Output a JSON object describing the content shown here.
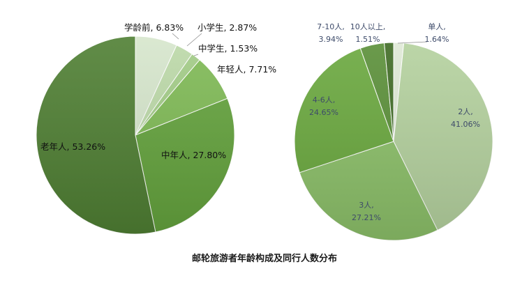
{
  "chart_data": [
    {
      "type": "pie",
      "slices": [
        {
          "label": "学龄前",
          "value": 6.83,
          "display": "学龄前, 6.83%",
          "color": "#d6e6cc"
        },
        {
          "label": "小学生",
          "value": 2.87,
          "display": "小学生, 2.87%",
          "color": "#bcd9a8"
        },
        {
          "label": "中学生",
          "value": 1.53,
          "display": "中学生, 1.53%",
          "color": "#a2cc86"
        },
        {
          "label": "年轻人",
          "value": 7.71,
          "display": "年轻人, 7.71%",
          "color": "#7fba55"
        },
        {
          "label": "中年人",
          "value": 27.8,
          "display": "中年人, 27.80%",
          "color": "#64a33d"
        },
        {
          "label": "老年人",
          "value": 53.26,
          "display": "老年人, 53.26%",
          "color": "#4f7f33"
        }
      ]
    },
    {
      "type": "pie",
      "slices": [
        {
          "label": "单人",
          "value": 1.64,
          "display_line1": "单人,",
          "display_line2": "1.64%",
          "color": "#dfe9d6"
        },
        {
          "label": "2人",
          "value": 41.06,
          "display_line1": "2人,",
          "display_line2": "41.06%",
          "color": "#b4d19e"
        },
        {
          "label": "3人",
          "value": 27.21,
          "display_line1": "3人,",
          "display_line2": "27.21%",
          "color": "#8cc069"
        },
        {
          "label": "4-6人",
          "value": 24.65,
          "display_line1": "4-6人,",
          "display_line2": "24.65%",
          "color": "#6aa83e"
        },
        {
          "label": "7-10人",
          "value": 3.94,
          "display_line1": "7-10人,",
          "display_line2": "3.94%",
          "color": "#5a8f38"
        },
        {
          "label": "10人以上",
          "value": 1.51,
          "display_line1": "10人以上,",
          "display_line2": "1.51%",
          "color": "#3f6b24"
        }
      ]
    }
  ],
  "title": "邮轮旅游者年龄构成及同行人数分布"
}
